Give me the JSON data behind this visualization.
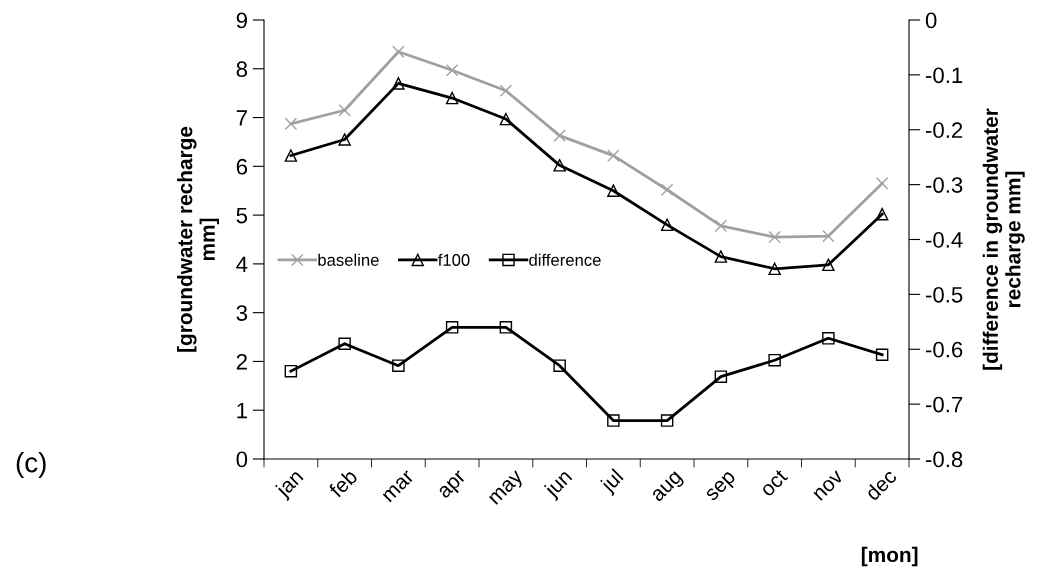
{
  "chart_data": {
    "type": "line",
    "categories": [
      "jan",
      "feb",
      "mar",
      "apr",
      "may",
      "jun",
      "jul",
      "aug",
      "sep",
      "oct",
      "nov",
      "dec"
    ],
    "series": [
      {
        "name": "baseline",
        "color": "#a0a0a0",
        "marker": "cross",
        "values": [
          6.87,
          7.15,
          8.35,
          7.97,
          7.55,
          6.63,
          6.22,
          5.52,
          4.78,
          4.55,
          4.57,
          5.65
        ]
      },
      {
        "name": "f100",
        "color": "#000000",
        "marker": "triangle",
        "values": [
          6.22,
          6.55,
          7.7,
          7.4,
          6.97,
          6.02,
          5.5,
          4.8,
          4.15,
          3.9,
          3.98,
          5.02
        ]
      },
      {
        "name": "difference",
        "color": "#000000",
        "marker": "square",
        "axis": "y2",
        "values": [
          -0.64,
          -0.59,
          -0.63,
          -0.56,
          -0.56,
          -0.63,
          -0.73,
          -0.73,
          -0.65,
          -0.62,
          -0.58,
          -0.61
        ]
      }
    ],
    "ylabel": "[groundwater recharge\nmm]",
    "y2label": "[difference in groundwater\nrecharge mm]",
    "xlabel": "[mon]",
    "ylim": [
      0,
      9
    ],
    "yticks": [
      0,
      1,
      2,
      3,
      4,
      5,
      6,
      7,
      8,
      9
    ],
    "y2lim": [
      -0.8,
      0
    ],
    "y2ticks": [
      {
        "value": -0.8,
        "label": "-0.8"
      },
      {
        "value": -0.7,
        "label": "-0.7"
      },
      {
        "value": -0.6,
        "label": "-0.6"
      },
      {
        "value": -0.5,
        "label": "-0.5"
      },
      {
        "value": -0.4,
        "label": "-0.4"
      },
      {
        "value": -0.3,
        "label": "-0.3"
      },
      {
        "value": -0.2,
        "label": "-0.2"
      },
      {
        "value": -0.1,
        "label": "-0.1"
      },
      0
    ],
    "annotations": [
      "(c)"
    ],
    "legend": "left",
    "grid": false
  }
}
